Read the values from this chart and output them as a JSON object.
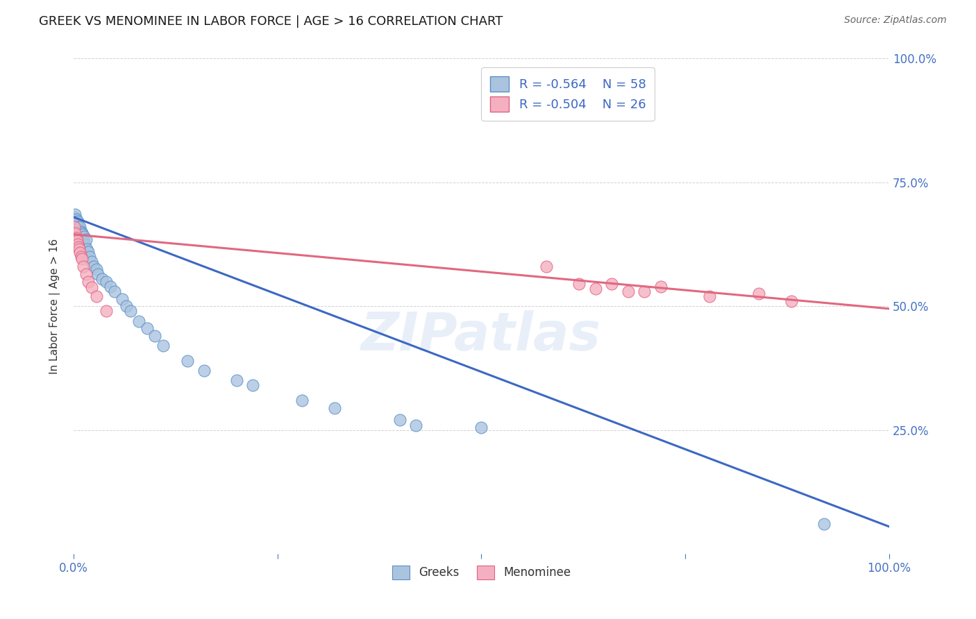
{
  "title": "GREEK VS MENOMINEE IN LABOR FORCE | AGE > 16 CORRELATION CHART",
  "source": "Source: ZipAtlas.com",
  "ylabel_label": "In Labor Force | Age > 16",
  "watermark": "ZIPatlas",
  "greek_color": "#aac4e0",
  "greek_edge_color": "#5b8ec4",
  "menominee_color": "#f4b0c0",
  "menominee_edge_color": "#e06080",
  "blue_line_color": "#3c68c4",
  "pink_line_color": "#e06880",
  "legend_greek_r": "-0.564",
  "legend_greek_n": "58",
  "legend_menominee_r": "-0.504",
  "legend_menominee_n": "26",
  "greek_x": [
    0.001,
    0.001,
    0.002,
    0.002,
    0.002,
    0.003,
    0.003,
    0.003,
    0.003,
    0.004,
    0.004,
    0.004,
    0.005,
    0.005,
    0.005,
    0.006,
    0.006,
    0.007,
    0.007,
    0.008,
    0.008,
    0.009,
    0.009,
    0.01,
    0.01,
    0.011,
    0.012,
    0.013,
    0.014,
    0.015,
    0.016,
    0.018,
    0.02,
    0.022,
    0.025,
    0.028,
    0.03,
    0.035,
    0.04,
    0.045,
    0.05,
    0.06,
    0.065,
    0.07,
    0.08,
    0.09,
    0.1,
    0.11,
    0.14,
    0.16,
    0.2,
    0.22,
    0.28,
    0.32,
    0.4,
    0.42,
    0.5,
    0.92
  ],
  "greek_y": [
    0.675,
    0.68,
    0.665,
    0.67,
    0.685,
    0.66,
    0.672,
    0.668,
    0.676,
    0.662,
    0.67,
    0.655,
    0.665,
    0.658,
    0.672,
    0.66,
    0.652,
    0.655,
    0.648,
    0.66,
    0.645,
    0.65,
    0.64,
    0.648,
    0.638,
    0.645,
    0.63,
    0.64,
    0.625,
    0.635,
    0.615,
    0.61,
    0.6,
    0.59,
    0.58,
    0.575,
    0.565,
    0.555,
    0.55,
    0.54,
    0.53,
    0.515,
    0.5,
    0.49,
    0.47,
    0.455,
    0.44,
    0.42,
    0.39,
    0.37,
    0.35,
    0.34,
    0.31,
    0.295,
    0.27,
    0.26,
    0.255,
    0.06
  ],
  "menominee_x": [
    0.001,
    0.002,
    0.003,
    0.004,
    0.005,
    0.006,
    0.007,
    0.008,
    0.009,
    0.01,
    0.012,
    0.015,
    0.018,
    0.022,
    0.028,
    0.04,
    0.58,
    0.62,
    0.64,
    0.66,
    0.68,
    0.7,
    0.72,
    0.78,
    0.84,
    0.88
  ],
  "menominee_y": [
    0.66,
    0.648,
    0.638,
    0.632,
    0.625,
    0.62,
    0.615,
    0.608,
    0.6,
    0.595,
    0.58,
    0.565,
    0.55,
    0.538,
    0.52,
    0.49,
    0.58,
    0.545,
    0.535,
    0.545,
    0.53,
    0.53,
    0.54,
    0.52,
    0.525,
    0.51
  ],
  "greek_trend_x": [
    0.0,
    1.0
  ],
  "greek_trend_y": [
    0.68,
    0.055
  ],
  "menominee_trend_x": [
    0.0,
    1.0
  ],
  "menominee_trend_y": [
    0.645,
    0.495
  ],
  "xlim": [
    0.0,
    1.0
  ],
  "ylim": [
    0.0,
    1.0
  ],
  "right_ytick_vals": [
    1.0,
    0.75,
    0.5,
    0.25
  ],
  "right_ytick_labels": [
    "100.0%",
    "75.0%",
    "50.0%",
    "25.0%"
  ],
  "xtick_vals": [
    0.0,
    0.25,
    0.5,
    0.75,
    1.0
  ],
  "xtick_labels": [
    "0.0%",
    "",
    "",
    "",
    "100.0%"
  ],
  "title_color": "#1a1a1a",
  "source_color": "#666666",
  "tick_color": "#4472c4",
  "grid_color": "#cccccc",
  "background_color": "#ffffff"
}
